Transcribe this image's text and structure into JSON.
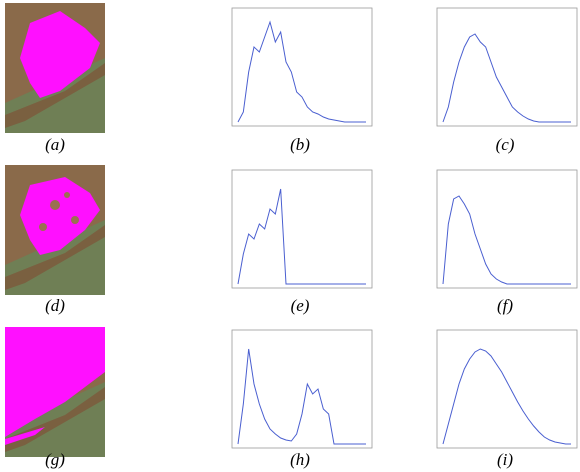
{
  "figure": {
    "captions": [
      "(a)",
      "(b)",
      "(c)",
      "(d)",
      "(e)",
      "(f)",
      "(g)",
      "(h)",
      "(i)"
    ],
    "plots": [
      {
        "type": "line",
        "xlim": [
          0,
          24
        ],
        "ylim": [
          0,
          1.1
        ],
        "color": "#4a5fd0",
        "values": [
          0,
          0.1,
          0.5,
          0.75,
          0.7,
          0.85,
          1.0,
          0.8,
          0.9,
          0.6,
          0.5,
          0.3,
          0.25,
          0.15,
          0.1,
          0.08,
          0.05,
          0.03,
          0.02,
          0.01,
          0,
          0,
          0,
          0,
          0
        ]
      },
      {
        "type": "line",
        "xlim": [
          0,
          24
        ],
        "ylim": [
          0,
          1.1
        ],
        "color": "#4a5fd0",
        "values": [
          0,
          0.15,
          0.4,
          0.6,
          0.75,
          0.85,
          0.88,
          0.8,
          0.75,
          0.6,
          0.45,
          0.35,
          0.25,
          0.15,
          0.1,
          0.06,
          0.03,
          0.01,
          0,
          0,
          0,
          0,
          0,
          0,
          0
        ]
      },
      {
        "type": "line",
        "xlim": [
          0,
          24
        ],
        "ylim": [
          0,
          1.1
        ],
        "color": "#4a5fd0",
        "values": [
          0,
          0.3,
          0.5,
          0.45,
          0.6,
          0.55,
          0.75,
          0.7,
          0.95,
          0,
          0,
          0,
          0,
          0,
          0,
          0,
          0,
          0,
          0,
          0,
          0,
          0,
          0,
          0,
          0
        ]
      },
      {
        "type": "line",
        "xlim": [
          0,
          24
        ],
        "ylim": [
          0,
          1.1
        ],
        "color": "#4a5fd0",
        "values": [
          0,
          0.6,
          0.85,
          0.88,
          0.8,
          0.7,
          0.5,
          0.35,
          0.2,
          0.1,
          0.05,
          0.02,
          0,
          0,
          0,
          0,
          0,
          0,
          0,
          0,
          0,
          0,
          0,
          0,
          0
        ]
      },
      {
        "type": "line",
        "xlim": [
          0,
          24
        ],
        "ylim": [
          0,
          1.1
        ],
        "color": "#4a5fd0",
        "values": [
          0,
          0.4,
          0.95,
          0.6,
          0.4,
          0.25,
          0.15,
          0.1,
          0.06,
          0.04,
          0.03,
          0.1,
          0.3,
          0.6,
          0.5,
          0.55,
          0.35,
          0.3,
          0,
          0,
          0,
          0,
          0,
          0,
          0
        ]
      },
      {
        "type": "line",
        "xlim": [
          0,
          24
        ],
        "ylim": [
          0,
          1.1
        ],
        "color": "#4a5fd0",
        "values": [
          0,
          0.2,
          0.4,
          0.6,
          0.75,
          0.85,
          0.92,
          0.95,
          0.93,
          0.88,
          0.8,
          0.72,
          0.62,
          0.52,
          0.42,
          0.33,
          0.25,
          0.18,
          0.12,
          0.07,
          0.04,
          0.02,
          0.01,
          0,
          0
        ]
      }
    ]
  }
}
